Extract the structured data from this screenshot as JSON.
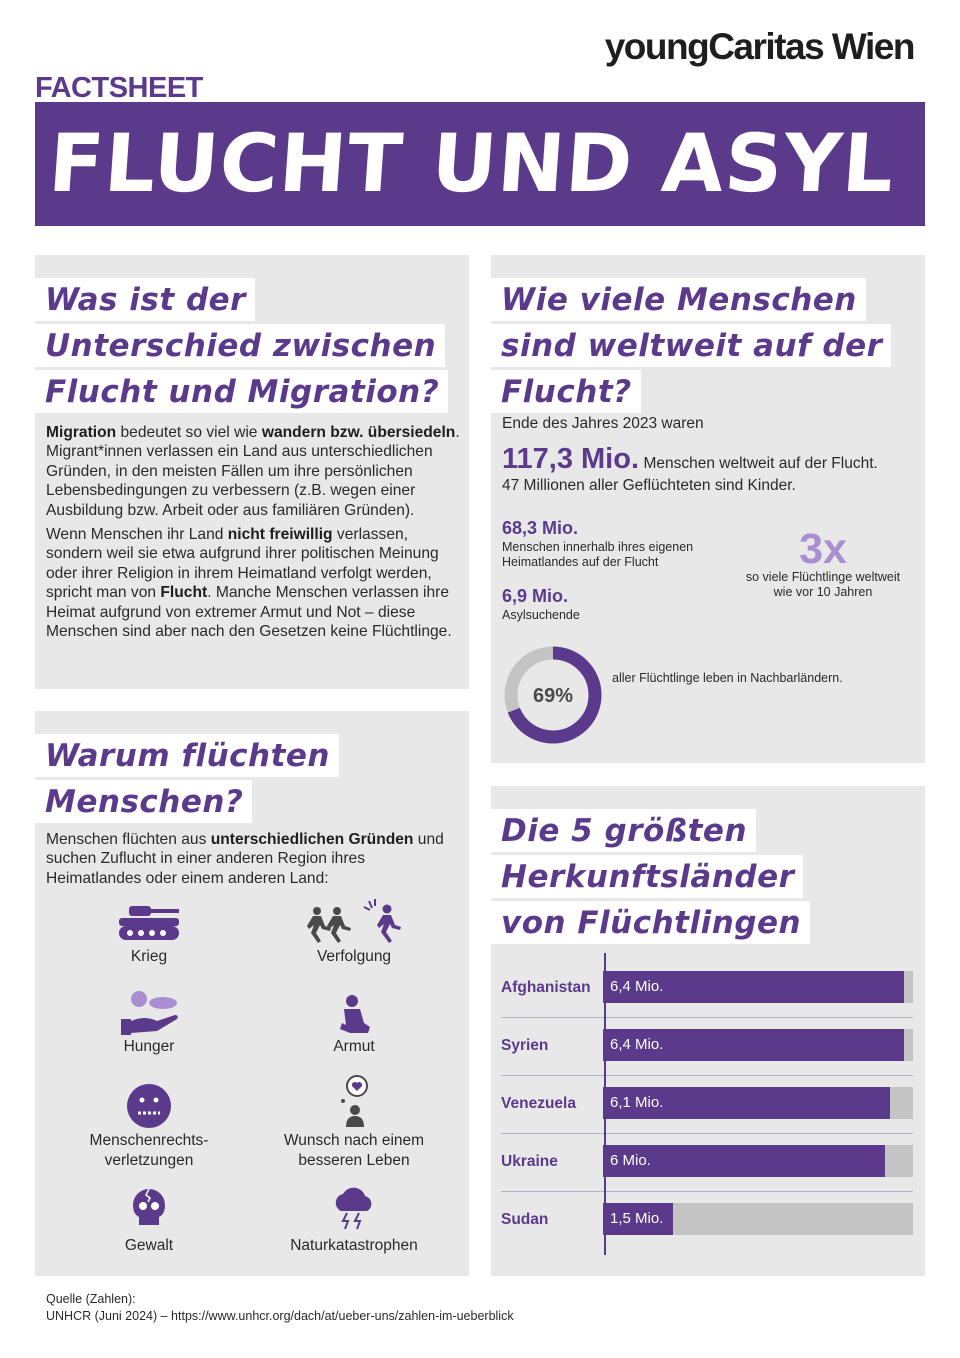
{
  "brand": "youngCaritas Wien",
  "header": {
    "kicker": "FACTSHEET",
    "title": "FLUCHT UND ASYL"
  },
  "section1": {
    "heading": [
      "Was ist der",
      "Unterschied zwischen",
      "Flucht und Migration?"
    ],
    "p1": [
      {
        "t": "Migration",
        "b": true
      },
      {
        "t": " bedeutet so viel wie "
      },
      {
        "t": "wandern bzw. übersiedeln",
        "b": true
      },
      {
        "t": ". Migrant*innen verlassen ein Land aus unterschiedlichen Gründen, in den meisten Fällen um ihre persönlichen Lebensbedingungen zu verbessern (z.B. wegen einer Ausbildung bzw. Arbeit oder aus familiären Gründen)."
      }
    ],
    "p2": [
      {
        "t": "Wenn Menschen ihr Land "
      },
      {
        "t": "nicht freiwillig",
        "b": true
      },
      {
        "t": " verlassen, sondern weil sie etwa aufgrund ihrer politischen Meinung oder ihrer Religion in ihrem Heimatland verfolgt werden, spricht man von "
      },
      {
        "t": "Flucht",
        "b": true
      },
      {
        "t": ". Manche Menschen verlassen ihre Heimat aufgrund von extremer Armut und Not – diese Menschen sind aber nach den Gesetzen keine Flüchtlinge."
      }
    ]
  },
  "section2": {
    "heading": [
      "Warum flüchten",
      "Menschen?"
    ],
    "intro": [
      {
        "t": "Menschen flüchten aus "
      },
      {
        "t": "unterschiedlichen Gründen",
        "b": true
      },
      {
        "t": " und suchen Zuflucht in einer anderen Region ihres Heimatlandes oder einem anderen Land:"
      }
    ],
    "reasons": [
      {
        "label": "Krieg",
        "icon": "tank-icon"
      },
      {
        "label": "Verfolgung",
        "icon": "running-people-icon"
      },
      {
        "label": "Hunger",
        "icon": "hand-with-food-icon"
      },
      {
        "label": "Armut",
        "icon": "kneeling-person-icon"
      },
      {
        "label": "Menschenrechts-\nverletzungen",
        "icon": "gagged-face-icon"
      },
      {
        "label": "Wunsch nach einem\nbesseren Leben",
        "icon": "person-heart-icon"
      },
      {
        "label": "Gewalt",
        "icon": "broken-skull-icon"
      },
      {
        "label": "Naturkatastrophen",
        "icon": "storm-cloud-icon"
      }
    ]
  },
  "section3": {
    "heading": [
      "Wie viele Menschen",
      "sind weltweit auf der",
      "Flucht?"
    ],
    "intro": "Ende des Jahres 2023 waren",
    "total_value": "117,3 Mio.",
    "total_text": "Menschen weltweit auf der Flucht.",
    "children_text": "47 Millionen aller Geflüchteten sind Kinder.",
    "internal_value": "68,3 Mio.",
    "internal_text": "Menschen innerhalb ihres eigenen\nHeimatlandes auf der Flucht",
    "asylum_value": "6,9 Mio.",
    "asylum_text": "Asylsuchende",
    "multiplier_value": "3x",
    "multiplier_text": "so viele Flüchtlinge weltweit\nwie vor 10 Jahren",
    "donut_label": "69%",
    "donut_fraction": 0.69,
    "donut_text": "aller Flüchtlinge leben in Nachbarländern.",
    "colors": {
      "accent": "#5b3a8c",
      "light": "#a98fd1",
      "track": "#c4c4c4"
    }
  },
  "section4": {
    "heading": [
      "Die 5 größten",
      "Herkunftsländer",
      "von Flüchtlingen"
    ]
  },
  "chart_data": {
    "type": "bar",
    "categories": [
      "Afghanistan",
      "Syrien",
      "Venezuela",
      "Ukraine",
      "Sudan"
    ],
    "values": [
      6.4,
      6.4,
      6.1,
      6.0,
      1.5
    ],
    "value_labels": [
      "6,4 Mio.",
      "6,4 Mio.",
      "6,1 Mio.",
      "6 Mio.",
      "1,5 Mio."
    ],
    "xlim": [
      0,
      6.6
    ],
    "orientation": "horizontal",
    "grid": false
  },
  "source": {
    "line1": "Quelle (Zahlen):",
    "line2": "UNHCR (Juni 2024) – https://www.unhcr.org/dach/at/ueber-uns/zahlen-im-ueberblick"
  }
}
